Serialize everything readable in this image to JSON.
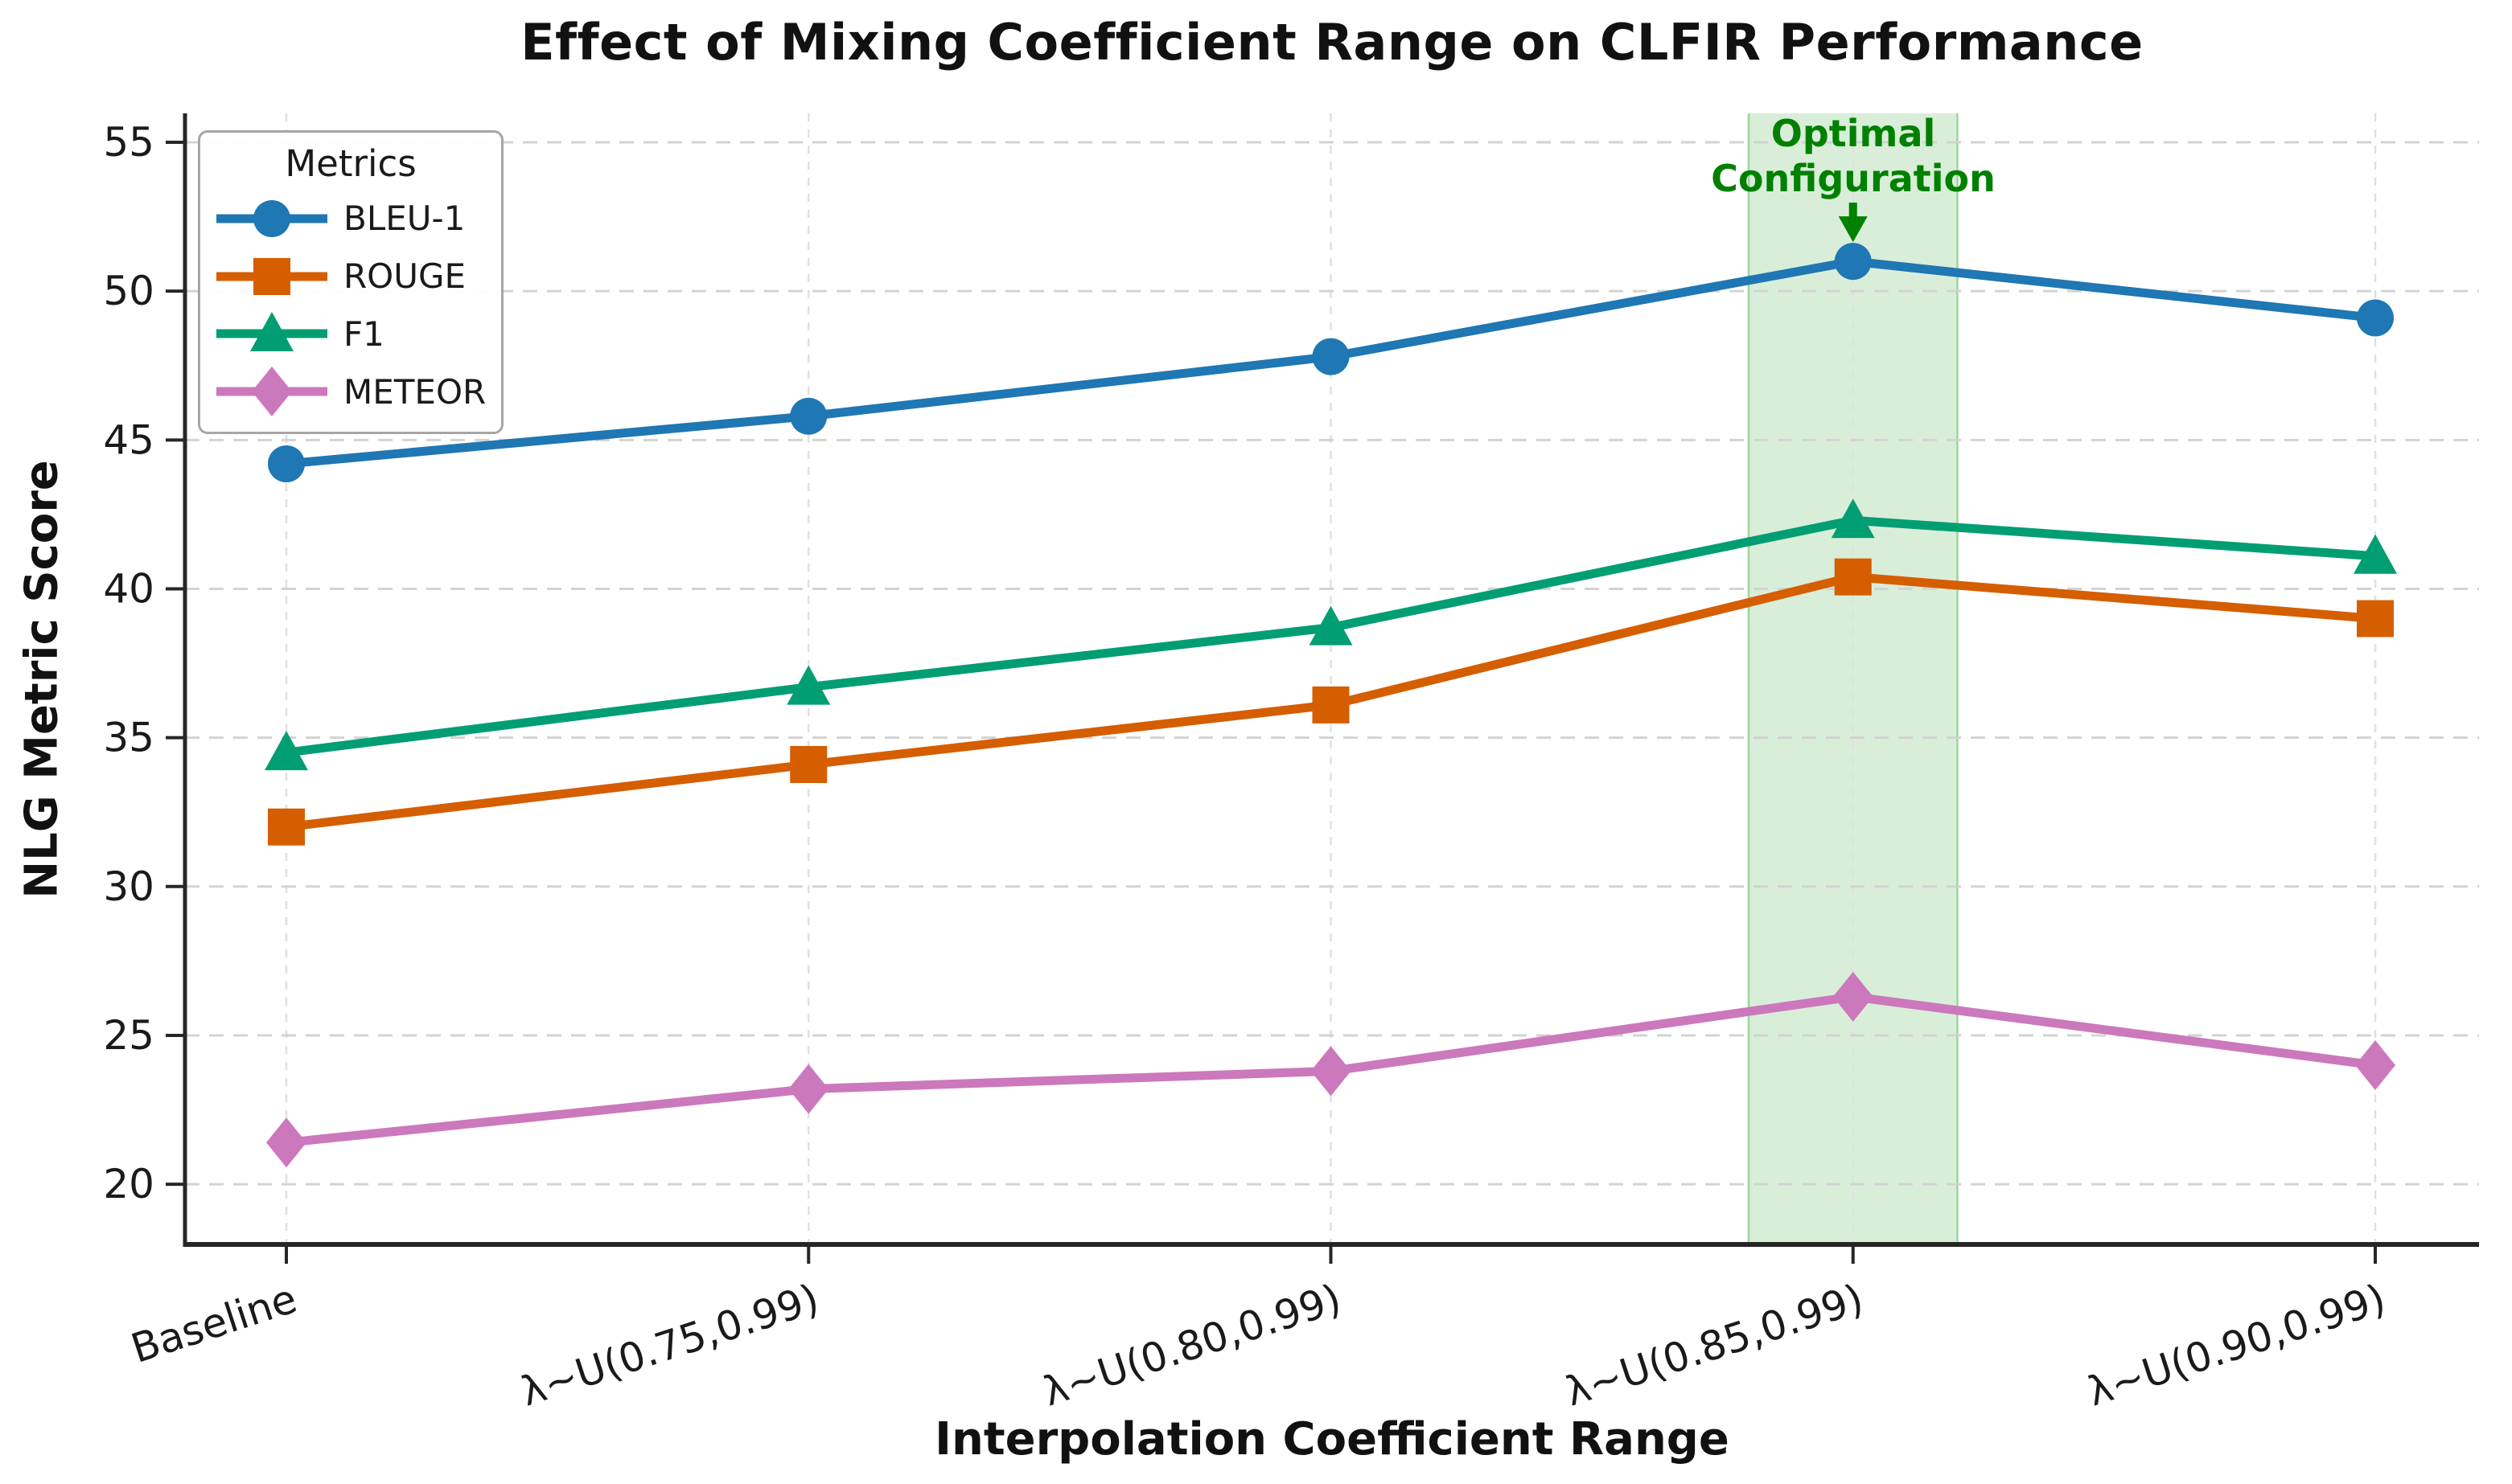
{
  "figure": {
    "background": "#ffffff",
    "text_color": "#111111"
  },
  "chart_data": {
    "type": "line",
    "title": "Effect of Mixing Coefficient Range on CLFIR Performance",
    "xlabel": "Interpolation Coefficient Range",
    "ylabel": "NLG Metric Score",
    "categories": [
      "Baseline",
      "λ~U(0.75,0.99)",
      "λ~U(0.80,0.99)",
      "λ~U(0.85,0.99)",
      "λ~U(0.90,0.99)"
    ],
    "yticks": [
      20,
      25,
      30,
      35,
      40,
      45,
      50,
      55
    ],
    "ylim": [
      18,
      56
    ],
    "grid": true,
    "x_tick_rotation_deg": 18,
    "legend": {
      "title": "Metrics",
      "position": "upper-left"
    },
    "series": [
      {
        "name": "BLEU-1",
        "marker": "circle",
        "color": "#1f77b4",
        "values": [
          44.2,
          45.8,
          47.8,
          51.0,
          49.1
        ]
      },
      {
        "name": "ROUGE",
        "marker": "square",
        "color": "#d55e00",
        "values": [
          32.0,
          34.1,
          36.1,
          40.4,
          39.0
        ]
      },
      {
        "name": "F1",
        "marker": "triangle",
        "color": "#029e73",
        "values": [
          34.5,
          36.7,
          38.7,
          42.3,
          41.1
        ]
      },
      {
        "name": "METEOR",
        "marker": "diamond",
        "color": "#cc78bc",
        "values": [
          21.4,
          23.2,
          23.8,
          26.3,
          24.0
        ]
      }
    ],
    "highlight_band": {
      "category_index": 3,
      "half_width_categories": 0.2,
      "fill": "#2ca02c",
      "fill_opacity": 0.18,
      "edge_opacity": 0.4
    },
    "annotation": {
      "line1": "Optimal",
      "line2": "Configuration",
      "color": "#008000",
      "target_series": "BLEU-1",
      "target_category_index": 3
    }
  }
}
